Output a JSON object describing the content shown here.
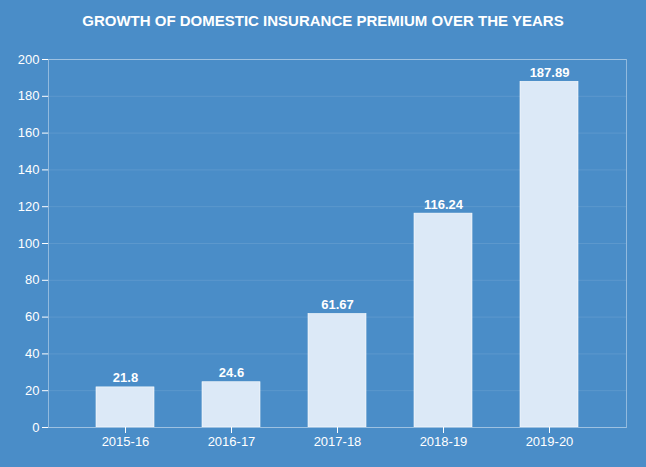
{
  "chart_data": {
    "type": "bar",
    "title": "GROWTH OF DOMESTIC INSURANCE PREMIUM OVER THE YEARS",
    "categories": [
      "2015-16",
      "2016-17",
      "2017-18",
      "2018-19",
      "2019-20"
    ],
    "values": [
      21.8,
      24.6,
      61.67,
      116.24,
      187.89
    ],
    "color": "#dce9f7",
    "ylim": [
      0,
      200
    ],
    "yticks": [
      0,
      20,
      40,
      60,
      80,
      100,
      120,
      140,
      160,
      180,
      200
    ],
    "grid": true,
    "data_labels": true
  }
}
